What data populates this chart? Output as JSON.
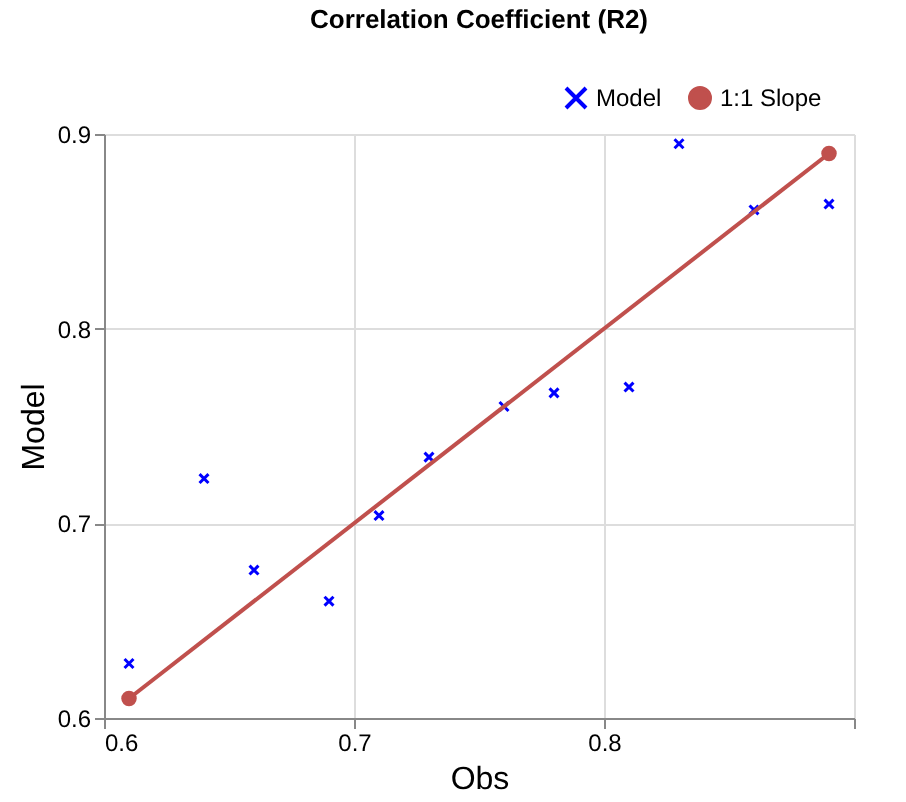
{
  "chart_data": {
    "type": "scatter",
    "title": "Correlation Coefficient (R2)",
    "xlabel": "Obs",
    "ylabel": "Model",
    "xlim": [
      0.6,
      0.9
    ],
    "ylim": [
      0.6,
      0.9
    ],
    "xticks": [
      0.6,
      0.7,
      0.8,
      {
        "value": 0.9,
        "label": null
      }
    ],
    "yticks": [
      0.6,
      0.7,
      0.8,
      0.9
    ],
    "grid": true,
    "legend": "top right",
    "series": [
      {
        "name": "Model",
        "marker": "cross",
        "color": "#0000ff",
        "x": [
          0.61,
          0.64,
          0.66,
          0.69,
          0.71,
          0.73,
          0.76,
          0.78,
          0.81,
          0.83,
          0.86,
          0.89
        ],
        "values": [
          0.628,
          0.723,
          0.676,
          0.66,
          0.704,
          0.734,
          0.76,
          0.767,
          0.77,
          0.895,
          0.861,
          0.864
        ]
      },
      {
        "name": "1:1 Slope",
        "type": "line",
        "marker": "circle",
        "line_style": "solid",
        "color": "#c0504d",
        "x": [
          0.61,
          0.89
        ],
        "values": [
          0.61,
          0.89
        ]
      }
    ]
  }
}
